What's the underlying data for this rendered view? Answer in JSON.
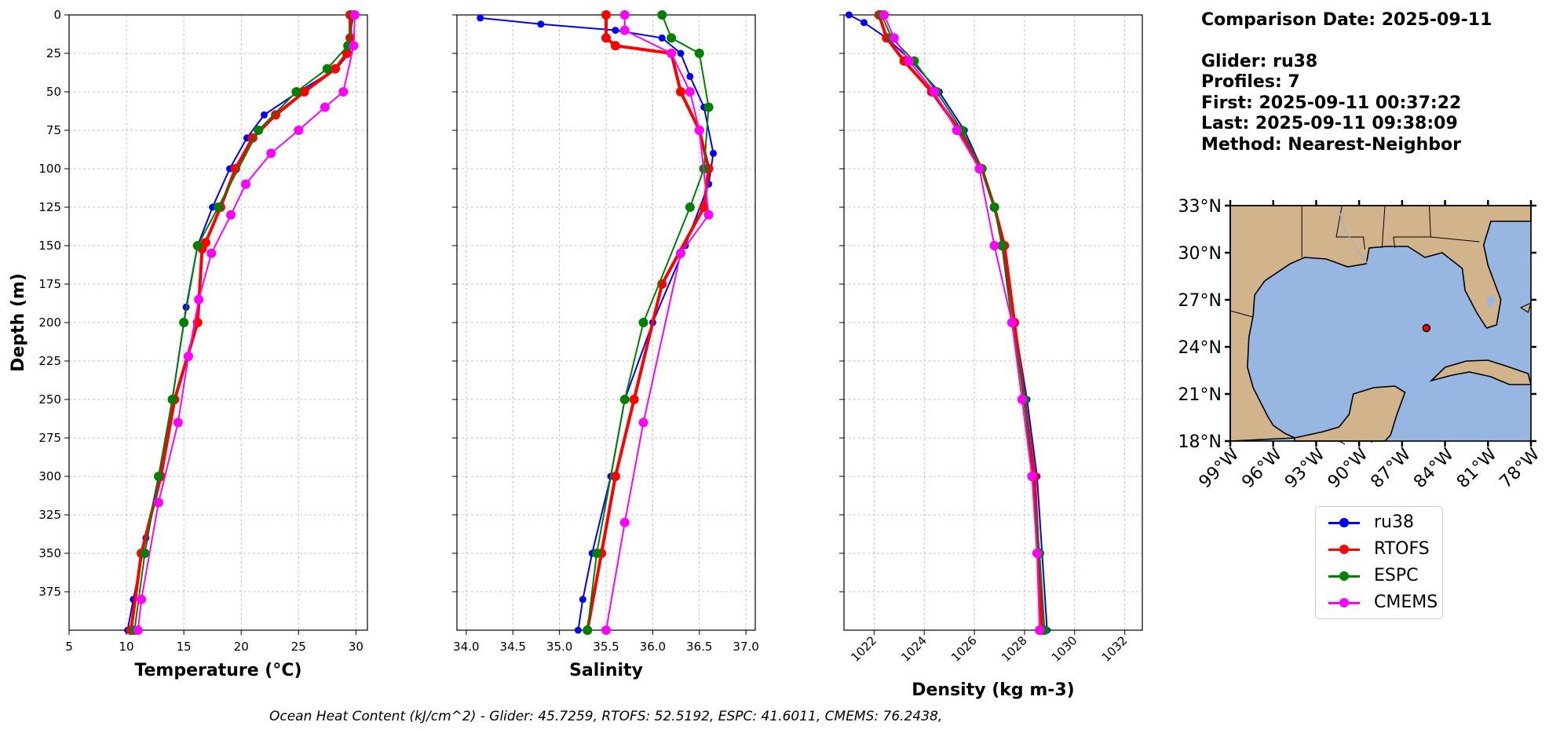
{
  "info": {
    "comparison_date": "Comparison Date: 2025-09-11",
    "glider": "Glider: ru38",
    "profiles": "Profiles: 7",
    "first": "First: 2025-09-11 00:37:22",
    "last": "Last: 2025-09-11 09:38:09",
    "method": "Method: Nearest-Neighbor"
  },
  "footer": "Ocean Heat Content (kJ/cm^2) - Glider: 45.7259,  RTOFS: 52.5192,  ESPC: 41.6011,  CMEMS: 76.2438,",
  "legend": [
    {
      "name": "ru38",
      "color": "#0000ff"
    },
    {
      "name": "RTOFS",
      "color": "#ff0000"
    },
    {
      "name": "ESPC",
      "color": "#008000"
    },
    {
      "name": "CMEMS",
      "color": "#ff00ff"
    }
  ],
  "chart_data": [
    {
      "type": "line",
      "xlabel": "Temperature (°C)",
      "ylabel": "Depth (m)",
      "xlim": [
        5,
        31
      ],
      "ylim": [
        400,
        0
      ],
      "xticks": [
        5,
        10,
        15,
        20,
        25,
        30
      ],
      "yticks": [
        0,
        25,
        50,
        75,
        100,
        125,
        150,
        175,
        200,
        225,
        250,
        275,
        300,
        325,
        350,
        375
      ],
      "grid": true,
      "series": [
        {
          "name": "ru38",
          "color": "#0000ff",
          "x": [
            29.6,
            29.6,
            29.4,
            28.3,
            25.0,
            22.0,
            20.5,
            19.0,
            17.5,
            16.2,
            15.2,
            14.0,
            12.8,
            11.7,
            10.6,
            10.1
          ],
          "y": [
            0,
            15,
            25,
            35,
            50,
            65,
            80,
            100,
            125,
            150,
            190,
            250,
            300,
            340,
            380,
            400
          ]
        },
        {
          "name": "RTOFS",
          "color": "#ff0000",
          "x": [
            29.5,
            29.5,
            29.2,
            28.2,
            25.5,
            23.0,
            21.0,
            19.5,
            18.2,
            16.9,
            16.6,
            16.2,
            14.2,
            13.0,
            11.3,
            10.4
          ],
          "y": [
            0,
            15,
            25,
            35,
            50,
            65,
            80,
            100,
            125,
            148,
            152,
            200,
            250,
            300,
            350,
            400
          ]
        },
        {
          "name": "ESPC",
          "color": "#008000",
          "x": [
            29.8,
            29.3,
            27.5,
            24.8,
            21.5,
            18.0,
            16.2,
            15.0,
            14.0,
            12.8,
            11.6,
            10.7
          ],
          "y": [
            0,
            20,
            35,
            50,
            75,
            125,
            150,
            200,
            250,
            300,
            350,
            400
          ]
        },
        {
          "name": "CMEMS",
          "color": "#ff00ff",
          "x": [
            29.9,
            29.8,
            28.9,
            27.3,
            25.0,
            22.6,
            20.4,
            19.1,
            17.4,
            16.3,
            15.4,
            14.5,
            12.8,
            11.3,
            11.0
          ],
          "y": [
            0,
            20,
            50,
            60,
            75,
            90,
            110,
            130,
            155,
            185,
            222,
            265,
            317,
            380,
            400
          ]
        }
      ]
    },
    {
      "type": "line",
      "xlabel": "Salinity",
      "ylabel": "",
      "xlim": [
        33.9,
        37.1
      ],
      "ylim": [
        400,
        0
      ],
      "xticks": [
        34.0,
        34.5,
        35.0,
        35.5,
        36.0,
        36.5,
        37.0
      ],
      "grid": true,
      "series": [
        {
          "name": "ru38",
          "color": "#0000ff",
          "x": [
            34.15,
            34.8,
            35.6,
            36.1,
            36.3,
            36.4,
            36.55,
            36.65,
            36.6,
            36.35,
            36.0,
            35.7,
            35.55,
            35.35,
            35.25,
            35.2
          ],
          "y": [
            2,
            6,
            10,
            15,
            25,
            40,
            60,
            90,
            110,
            150,
            200,
            250,
            300,
            350,
            380,
            400
          ]
        },
        {
          "name": "RTOFS",
          "color": "#ff0000",
          "x": [
            35.5,
            35.5,
            35.6,
            36.2,
            36.3,
            36.5,
            36.6,
            36.55,
            36.1,
            35.8,
            35.6,
            35.45,
            35.3
          ],
          "y": [
            0,
            15,
            20,
            25,
            50,
            75,
            100,
            125,
            175,
            250,
            300,
            350,
            400
          ]
        },
        {
          "name": "ESPC",
          "color": "#008000",
          "x": [
            36.1,
            36.2,
            36.5,
            36.6,
            36.55,
            36.4,
            35.9,
            35.7,
            35.4,
            35.3
          ],
          "y": [
            0,
            15,
            25,
            60,
            100,
            125,
            200,
            250,
            350,
            400
          ]
        },
        {
          "name": "CMEMS",
          "color": "#ff00ff",
          "x": [
            35.7,
            35.7,
            36.2,
            36.4,
            36.5,
            36.6,
            36.3,
            35.9,
            35.7,
            35.5
          ],
          "y": [
            0,
            10,
            25,
            50,
            75,
            130,
            155,
            265,
            330,
            400
          ]
        }
      ]
    },
    {
      "type": "line",
      "xlabel": "Density (kg m-3)",
      "ylabel": "",
      "xlim": [
        1020.8,
        1032.7
      ],
      "ylim": [
        400,
        0
      ],
      "xticks": [
        1022,
        1024,
        1026,
        1028,
        1030,
        1032
      ],
      "grid": true,
      "series": [
        {
          "name": "ru38",
          "color": "#0000ff",
          "x": [
            1021.0,
            1021.6,
            1022.5,
            1023.5,
            1024.6,
            1025.6,
            1026.3,
            1026.8,
            1027.1,
            1027.6,
            1028.1,
            1028.5,
            1028.9
          ],
          "y": [
            0,
            5,
            15,
            30,
            50,
            75,
            100,
            125,
            150,
            200,
            250,
            300,
            400
          ]
        },
        {
          "name": "RTOFS",
          "color": "#ff0000",
          "x": [
            1022.2,
            1022.5,
            1023.2,
            1024.3,
            1025.4,
            1026.3,
            1026.8,
            1027.2,
            1027.6,
            1028.0,
            1028.4,
            1028.7
          ],
          "y": [
            0,
            15,
            30,
            50,
            75,
            100,
            125,
            150,
            200,
            250,
            300,
            400
          ]
        },
        {
          "name": "ESPC",
          "color": "#008000",
          "x": [
            1022.3,
            1022.7,
            1023.6,
            1024.5,
            1025.5,
            1026.3,
            1026.8,
            1027.1,
            1027.5,
            1028.0,
            1028.3,
            1028.6,
            1028.8
          ],
          "y": [
            0,
            15,
            30,
            50,
            75,
            100,
            125,
            150,
            200,
            250,
            300,
            350,
            400
          ]
        },
        {
          "name": "CMEMS",
          "color": "#ff00ff",
          "x": [
            1022.4,
            1022.8,
            1023.4,
            1024.4,
            1025.3,
            1026.2,
            1026.8,
            1027.5,
            1027.9,
            1028.3,
            1028.5,
            1028.6
          ],
          "y": [
            0,
            15,
            30,
            50,
            75,
            100,
            150,
            200,
            250,
            300,
            350,
            400
          ]
        }
      ]
    },
    {
      "type": "map",
      "title": "",
      "xlim": [
        -99,
        -78
      ],
      "ylim": [
        18,
        33
      ],
      "xticks": [
        "99°W",
        "96°W",
        "93°W",
        "90°W",
        "87°W",
        "84°W",
        "81°W",
        "78°W"
      ],
      "yticks": [
        "33°N",
        "30°N",
        "27°N",
        "24°N",
        "21°N",
        "18°N"
      ],
      "land_color": "#d2b48c",
      "ocean_color": "#97b6e1",
      "marker": {
        "lon": -85.3,
        "lat": 25.2,
        "color": "#ff0000"
      }
    }
  ]
}
